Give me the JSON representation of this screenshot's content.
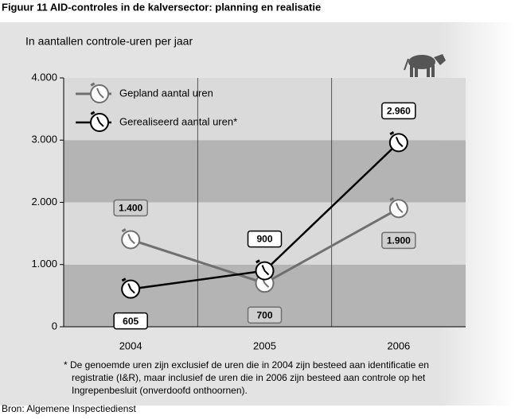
{
  "chart_data": {
    "type": "line",
    "title": "Figuur 11 AID-controles in de kalversector: planning en realisatie",
    "subtitle": "In aantallen controle-uren per jaar",
    "categories": [
      "2004",
      "2005",
      "2006"
    ],
    "series": [
      {
        "name": "Gepland aantal uren",
        "color": "#707070",
        "values": [
          1400,
          700,
          1900
        ],
        "value_labels": [
          "1.400",
          "700",
          "1.900"
        ]
      },
      {
        "name": "Gerealiseerd aantal uren*",
        "color": "#000000",
        "values": [
          605,
          900,
          2960
        ],
        "value_labels": [
          "605",
          "900",
          "2.960"
        ]
      }
    ],
    "ylim": [
      0,
      4000
    ],
    "yticks": [
      {
        "value": 0,
        "label": "0"
      },
      {
        "value": 1000,
        "label": "1.000"
      },
      {
        "value": 2000,
        "label": "2.000"
      },
      {
        "value": 3000,
        "label": "3.000"
      },
      {
        "value": 4000,
        "label": "4.000"
      }
    ],
    "footnote": [
      "* De genoemde uren zijn exclusief de uren die in 2004 zijn besteed aan identificatie en",
      "registratie (I&R), maar inclusief de uren die in 2006 zijn besteed aan controle op het",
      "Ingrepenbesluit (onverdoofd onthoornen)."
    ],
    "source": "Bron: Algemene Inspectiedienst"
  }
}
